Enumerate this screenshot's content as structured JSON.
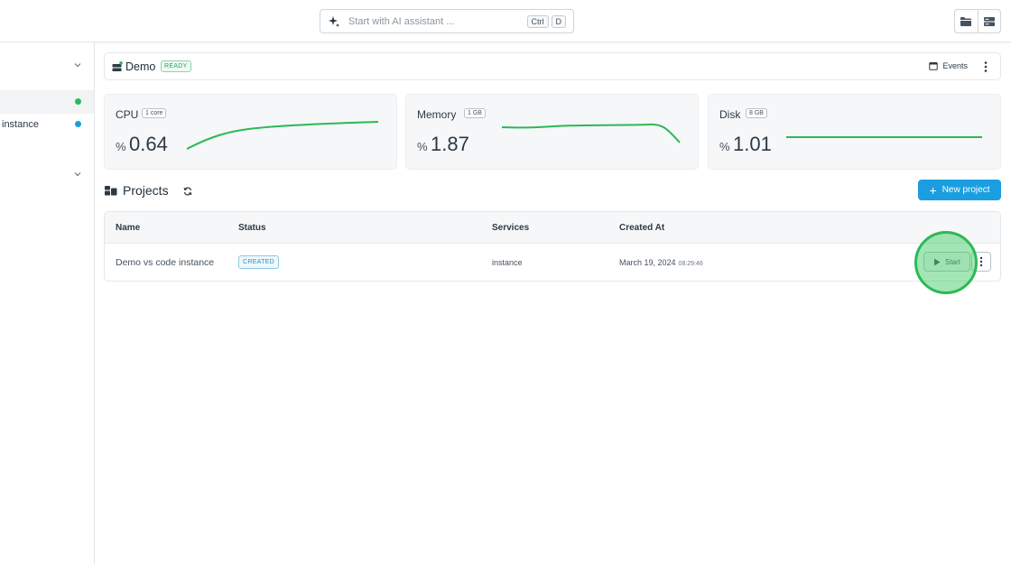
{
  "topbar": {
    "search_placeholder": "Start with AI assistant ...",
    "shortcut_keys": [
      "Ctrl",
      "D"
    ]
  },
  "sidebar": {
    "items": [
      {
        "label": "",
        "status_color": "#2cb957"
      },
      {
        "label": "instance",
        "status_color": "#1a9ee0"
      }
    ]
  },
  "environment": {
    "name": "Demo",
    "status": "READY",
    "events_label": "Events"
  },
  "metrics": [
    {
      "name": "CPU",
      "tag": "1 core",
      "unit": "%",
      "value": "0.64"
    },
    {
      "name": "Memory",
      "tag": "1 GB",
      "unit": "%",
      "value": "1.87"
    },
    {
      "name": "Disk",
      "tag": "8 GB",
      "unit": "%",
      "value": "1.01"
    }
  ],
  "projects": {
    "title": "Projects",
    "new_button": "New project",
    "columns": [
      "Name",
      "Status",
      "Services",
      "Created At"
    ],
    "rows": [
      {
        "name": "Demo vs code instance",
        "status": "CREATED",
        "services": "instance",
        "created_date": "March 19, 2024",
        "created_time": "08:29:46",
        "action": "Start"
      }
    ]
  },
  "colors": {
    "accent": "#1a9ee0",
    "success": "#2cb957",
    "sparkline": "#2cb957"
  }
}
